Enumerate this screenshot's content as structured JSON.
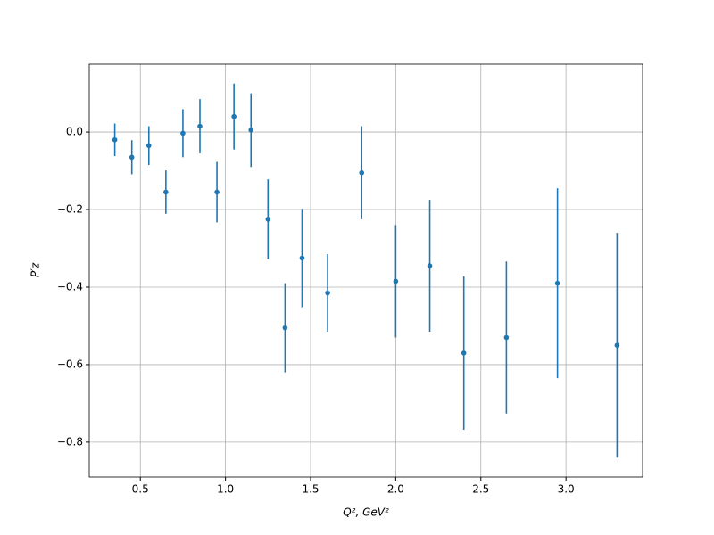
{
  "chart_data": {
    "type": "errorbar",
    "x_label": "Q², GeV²",
    "y_label": "P′z",
    "x": [
      0.35,
      0.45,
      0.55,
      0.65,
      0.75,
      0.85,
      0.95,
      1.05,
      1.15,
      1.25,
      1.35,
      1.45,
      1.6,
      1.8,
      2.0,
      2.2,
      2.4,
      2.65,
      2.95,
      3.3
    ],
    "values": [
      -0.02,
      -0.065,
      -0.035,
      -0.155,
      -0.003,
      0.015,
      -0.155,
      0.04,
      0.005,
      -0.225,
      -0.505,
      -0.325,
      -0.415,
      -0.105,
      -0.385,
      -0.345,
      -0.57,
      -0.53,
      -0.39,
      -0.55
    ],
    "errors": [
      0.042,
      0.044,
      0.05,
      0.056,
      0.062,
      0.07,
      0.078,
      0.085,
      0.095,
      0.103,
      0.115,
      0.127,
      0.1,
      0.12,
      0.145,
      0.17,
      0.198,
      0.196,
      0.245,
      0.29
    ],
    "color": "#1f77b4",
    "xlim": [
      0.2,
      3.45
    ],
    "xticks": [
      0.5,
      {
        "value": 1,
        "label": "1.0"
      },
      1.5,
      {
        "value": 2,
        "label": "2.0"
      },
      2.5,
      {
        "value": 3,
        "label": "3.0"
      }
    ],
    "ylim": [
      -0.89,
      0.175
    ],
    "yticks": [
      {
        "value": -0.8,
        "label": "−0.8"
      },
      {
        "value": -0.6,
        "label": "−0.6"
      },
      {
        "value": -0.4,
        "label": "−0.4"
      },
      {
        "value": -0.2,
        "label": "−0.2"
      },
      {
        "value": 0,
        "label": "0.0"
      }
    ],
    "grid": true
  }
}
